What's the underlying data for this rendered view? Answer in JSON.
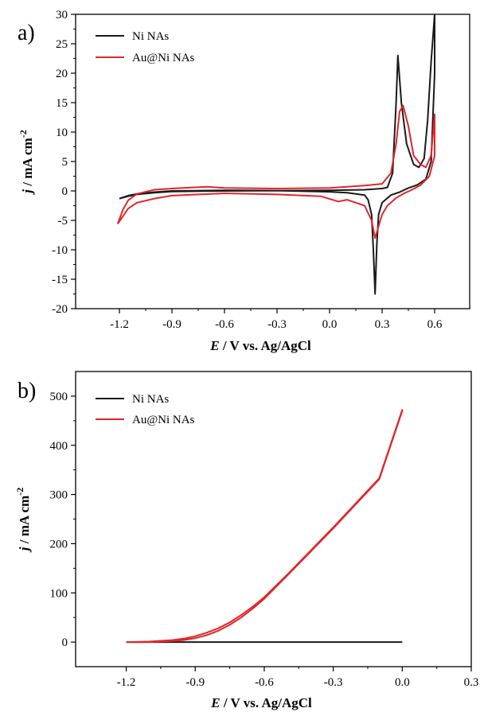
{
  "chart_data": [
    {
      "type": "line",
      "panel_label": "a)",
      "xlabel_italic": "E",
      "xlabel_rest": " / V vs. Ag/AgCl",
      "ylabel_italic": "j",
      "ylabel_rest": " / mA cm",
      "ylabel_sup": "-2",
      "xlim": [
        -1.45,
        0.8
      ],
      "ylim": [
        -20,
        30
      ],
      "xticks": [
        -1.2,
        -0.9,
        -0.6,
        -0.3,
        0.0,
        0.3,
        0.6
      ],
      "xtick_labels": [
        "-1.2",
        "-0.9",
        "-0.6",
        "-0.3",
        "0.0",
        "0.3",
        "0.6"
      ],
      "yticks": [
        -20,
        -15,
        -10,
        -5,
        0,
        5,
        10,
        15,
        20,
        25,
        30
      ],
      "ytick_labels": [
        "-20",
        "-15",
        "-10",
        "-5",
        "0",
        "5",
        "10",
        "15",
        "20",
        "25",
        "30"
      ],
      "legend_position": "top-left",
      "series": [
        {
          "name": "Ni NAs",
          "color": "#1a1a1a",
          "x": [
            -1.2,
            -1.15,
            -1.1,
            -1.0,
            -0.9,
            -0.6,
            -0.3,
            0.0,
            0.2,
            0.3,
            0.33,
            0.36,
            0.38,
            0.39,
            0.41,
            0.44,
            0.48,
            0.51,
            0.54,
            0.56,
            0.58,
            0.6,
            0.6,
            0.58,
            0.55,
            0.5,
            0.45,
            0.4,
            0.35,
            0.3,
            0.28,
            0.27,
            0.26,
            0.25,
            0.24,
            0.22,
            0.2,
            0.1,
            0.0,
            -0.3,
            -0.6,
            -0.9,
            -1.0,
            -1.1,
            -1.15,
            -1.2
          ],
          "y": [
            -1.3,
            -0.9,
            -0.6,
            -0.3,
            -0.1,
            0.0,
            0.05,
            0.1,
            0.2,
            0.4,
            0.6,
            3.0,
            15.0,
            23.0,
            15.0,
            8.0,
            4.5,
            4.0,
            5.5,
            12.0,
            22.0,
            30.0,
            20.0,
            5.0,
            2.0,
            1.0,
            0.5,
            -0.2,
            -0.7,
            -2.0,
            -4.0,
            -9.0,
            -17.5,
            -10.0,
            -4.0,
            -1.5,
            -0.7,
            -0.3,
            -0.15,
            0.05,
            0.1,
            0.0,
            -0.2,
            -0.5,
            -0.8,
            -1.3
          ]
        },
        {
          "name": "Au@Ni NAs",
          "color": "#e0262b",
          "x": [
            -1.21,
            -1.18,
            -1.15,
            -1.1,
            -1.0,
            -0.9,
            -0.7,
            -0.6,
            -0.3,
            0.0,
            0.2,
            0.3,
            0.35,
            0.38,
            0.4,
            0.42,
            0.45,
            0.48,
            0.52,
            0.55,
            0.58,
            0.6,
            0.6,
            0.57,
            0.52,
            0.47,
            0.42,
            0.38,
            0.33,
            0.3,
            0.28,
            0.26,
            0.24,
            0.2,
            0.1,
            0.05,
            -0.05,
            -0.3,
            -0.6,
            -0.9,
            -1.0,
            -1.1,
            -1.15,
            -1.21
          ],
          "y": [
            -5.6,
            -3.2,
            -1.6,
            -0.5,
            0.2,
            0.4,
            0.7,
            0.5,
            0.4,
            0.5,
            0.9,
            1.2,
            3.0,
            8.0,
            13.5,
            14.5,
            11.0,
            6.0,
            4.5,
            4.0,
            6.0,
            13.0,
            6.0,
            2.5,
            1.0,
            0.2,
            -0.5,
            -1.2,
            -2.5,
            -4.0,
            -6.0,
            -8.0,
            -5.0,
            -2.5,
            -1.5,
            -1.8,
            -0.9,
            -0.6,
            -0.4,
            -0.8,
            -1.3,
            -2.0,
            -3.0,
            -5.6
          ]
        }
      ]
    },
    {
      "type": "line",
      "panel_label": "b)",
      "xlabel_italic": "E",
      "xlabel_rest": " / V vs. Ag/AgCl",
      "ylabel_italic": "j",
      "ylabel_rest": " / mA cm",
      "ylabel_sup": "-2",
      "xlim": [
        -1.42,
        0.3
      ],
      "ylim": [
        -50,
        550
      ],
      "xticks": [
        -1.2,
        -0.9,
        -0.6,
        -0.3,
        0.0,
        0.3
      ],
      "xtick_labels": [
        "-1.2",
        "-0.9",
        "-0.6",
        "-0.3",
        "0.0",
        "0.3"
      ],
      "yticks": [
        0,
        100,
        200,
        300,
        400,
        500
      ],
      "ytick_labels": [
        "0",
        "100",
        "200",
        "300",
        "400",
        "500"
      ],
      "legend_position": "top-left",
      "series": [
        {
          "name": "Ni NAs",
          "color": "#1a1a1a",
          "x": [
            -1.2,
            -1.0,
            -0.8,
            -0.6,
            -0.4,
            -0.2,
            0.0
          ],
          "y": [
            0,
            0,
            0,
            0,
            0,
            0,
            0
          ]
        },
        {
          "name": "Au@Ni NAs",
          "color": "#e0262b",
          "x": [
            -1.2,
            -1.1,
            -1.0,
            -0.95,
            -0.9,
            -0.85,
            -0.8,
            -0.75,
            -0.7,
            -0.65,
            -0.6,
            -0.5,
            -0.4,
            -0.3,
            -0.2,
            -0.1,
            0.0,
            0.0,
            -0.1,
            -0.2,
            -0.3,
            -0.4,
            -0.5,
            -0.6,
            -0.65,
            -0.7,
            -0.75,
            -0.8,
            -0.85,
            -0.9,
            -0.95,
            -1.0,
            -1.1,
            -1.2
          ],
          "y": [
            0,
            1,
            4,
            7,
            12,
            19,
            28,
            40,
            55,
            72,
            91,
            137,
            185,
            233,
            283,
            333,
            472,
            470,
            331,
            281,
            231,
            183,
            135,
            88,
            68,
            50,
            35,
            23,
            14,
            8,
            4,
            2,
            0,
            0
          ]
        }
      ]
    }
  ]
}
